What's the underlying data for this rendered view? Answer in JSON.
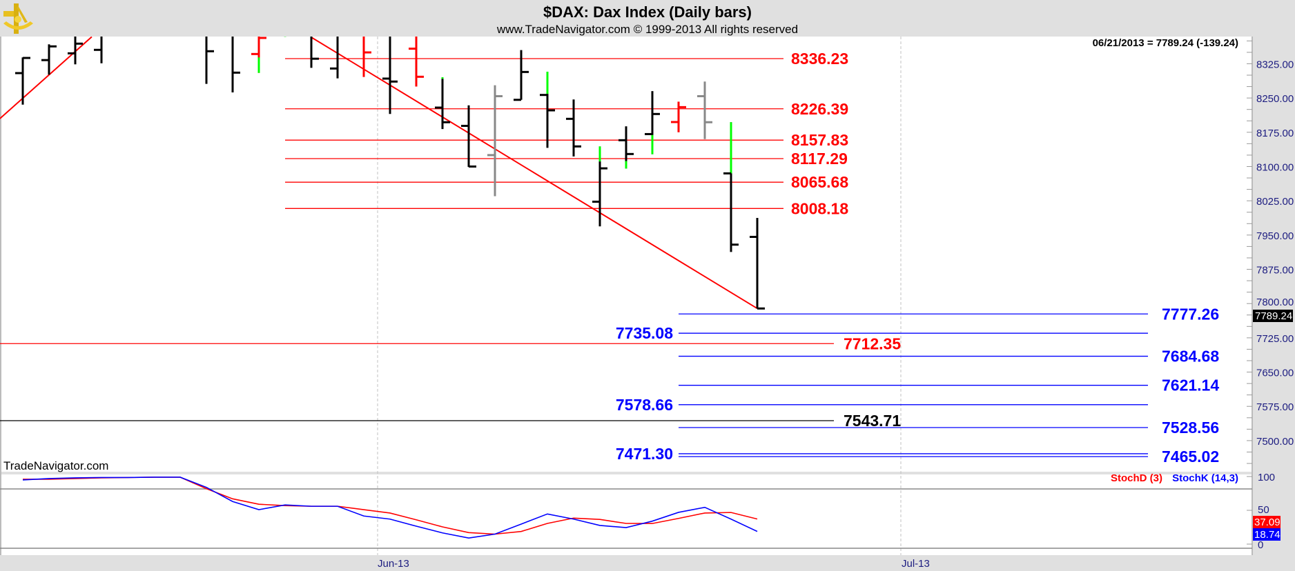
{
  "header": {
    "title": "$DAX:  Dax Index  (Daily bars)",
    "subtitle": "www.TradeNavigator.com © 1999-2013 All rights reserved",
    "last_quote": "06/21/2013 = 7789.24 (-139.24)",
    "logo": "sextant-logo"
  },
  "watermark": "TradeNavigator.com",
  "colors": {
    "up_tip": "#00ff00",
    "red": "#ff0000",
    "blue": "#0000ff",
    "grey": "#888888",
    "bar": "#000000",
    "axis_text": "#1c1c80",
    "background": "#e0e0e0"
  },
  "chart_data": [
    {
      "type": "ohlc",
      "title": "$DAX:  Dax Index  (Daily bars)",
      "x_tick_labels": [
        "Jun-13",
        "Jul-13"
      ],
      "y_tick_labels": [
        "8325.00",
        "8250.00",
        "8175.00",
        "8100.00",
        "8025.00",
        "7950.00",
        "7875.00",
        "7800.00",
        "7725.00",
        "7650.00",
        "7575.00",
        "7500.00"
      ],
      "ylim": [
        7440,
        8385
      ],
      "current_price_label": "7789.24",
      "bars": [
        {
          "o": 8304.5,
          "h": 8338.8,
          "l": 8235.5,
          "c": 8337.7,
          "color": "#000000"
        },
        {
          "o": 8333,
          "h": 8367.5,
          "l": 8301,
          "c": 8363,
          "color": "#000000"
        },
        {
          "o": 8347.8,
          "h": 8395,
          "l": 8323.7,
          "c": 8369,
          "color": "#000000"
        },
        {
          "o": 8355.4,
          "h": 8420,
          "l": 8326,
          "c": 8400,
          "color": "#000000"
        },
        null,
        null,
        null,
        {
          "o": 8400,
          "h": 8430,
          "l": 8281,
          "c": 8352.4,
          "color": "#000000"
        },
        {
          "o": 8410,
          "h": 8430,
          "l": 8262.3,
          "c": 8305.5,
          "color": "#000000"
        },
        {
          "o": 8346.3,
          "h": 8385,
          "l": 8305,
          "c": 8381.5,
          "color": "#ff0000",
          "bottom_color": "#00ff00",
          "bottom_from": 8338.8
        },
        {
          "o": 8420,
          "h": 8440,
          "l": 8384,
          "c": 8430,
          "color": "#00ff00"
        },
        {
          "o": 8400,
          "h": 8420,
          "l": 8316,
          "c": 8336,
          "color": "#000000"
        },
        {
          "o": 8314.6,
          "h": 8410,
          "l": 8293,
          "c": 8395,
          "color": "#000000"
        },
        {
          "o": 8400,
          "h": 8410,
          "l": 8296,
          "c": 8349.8,
          "color": "#ff0000"
        },
        {
          "o": 8292.5,
          "h": 8420,
          "l": 8215,
          "c": 8286,
          "color": "#000000"
        },
        {
          "o": 8358,
          "h": 8420,
          "l": 8275,
          "c": 8296.5,
          "color": "#ff0000"
        },
        {
          "o": 8229,
          "h": 8295.5,
          "l": 8182,
          "c": 8197,
          "color": "#000000",
          "top_color": "#00ff00",
          "top_to": 8292
        },
        {
          "o": 8189,
          "h": 8234,
          "l": 8099,
          "c": 8100,
          "color": "#000000"
        },
        {
          "o": 8125,
          "h": 8278,
          "l": 8035,
          "c": 8254,
          "color": "#888888"
        },
        {
          "o": 8246,
          "h": 8355,
          "l": 8246,
          "c": 8307,
          "color": "#000000"
        },
        {
          "o": 8256.7,
          "h": 8307.6,
          "l": 8141,
          "c": 8223,
          "color": "#000000",
          "top_color": "#00ff00",
          "top_to": 8259
        },
        {
          "o": 8204.4,
          "h": 8246.7,
          "l": 8122,
          "c": 8144,
          "color": "#000000"
        },
        {
          "o": 8023,
          "h": 8144,
          "l": 7969,
          "c": 8096,
          "color": "#000000",
          "top_color": "#00ff00",
          "top_to": 8111
        },
        {
          "o": 8157.6,
          "h": 8188,
          "l": 8095.7,
          "c": 8127.4,
          "color": "#000000",
          "bottom_color": "#00ff00",
          "bottom_from": 8112
        },
        {
          "o": 8171,
          "h": 8265,
          "l": 8127,
          "c": 8215,
          "color": "#000000",
          "bottom_color": "#00ff00",
          "bottom_from": 8169
        },
        {
          "o": 8197.4,
          "h": 8242,
          "l": 8175,
          "c": 8230,
          "color": "#ff0000"
        },
        {
          "o": 8254,
          "h": 8286,
          "l": 8160,
          "c": 8197,
          "color": "#888888"
        },
        {
          "o": 8085,
          "h": 8197,
          "l": 7913,
          "c": 7929,
          "color": "#000000",
          "top_color": "#00ff00",
          "top_to": 8085
        },
        {
          "o": 7946,
          "h": 7987.5,
          "l": 7789.24,
          "c": 7789.24,
          "color": "#000000"
        }
      ],
      "trendlines": [
        {
          "color": "#ff0000",
          "points": [
            [
              -0.87,
              8205
            ],
            [
              2.63,
              8384
            ]
          ]
        },
        {
          "color": "#ff0000",
          "points": [
            [
              10.97,
              8384
            ],
            [
              28,
              7789.24
            ]
          ]
        }
      ],
      "red_levels": [
        "8336.23",
        "8226.39",
        "8157.83",
        "8117.29",
        "8065.68",
        "8008.18"
      ],
      "blue_levels": [
        {
          "value": "7777.26",
          "label_side": "right"
        },
        {
          "value": "7735.08",
          "label_side": "left"
        },
        {
          "value": "7684.68",
          "label_side": "right"
        },
        {
          "value": "7621.14",
          "label_side": "right"
        },
        {
          "value": "7578.66",
          "label_side": "left"
        },
        {
          "value": "7528.56",
          "label_side": "right"
        },
        {
          "value": "7471.30",
          "label_side": "left"
        },
        {
          "value": "7465.02",
          "label_side": "right"
        }
      ],
      "long_levels": [
        {
          "value": "7712.35",
          "color": "#ff0000"
        },
        {
          "value": "7543.71",
          "color": "#000000"
        }
      ]
    },
    {
      "type": "line",
      "ylim": [
        0,
        100
      ],
      "y_tick_labels": [
        "100",
        "50",
        "0"
      ],
      "series": [
        {
          "name": "StochD (3)",
          "color": "#ff0000",
          "last": "37.09",
          "values": [
            96,
            96,
            97,
            98,
            98.5,
            99,
            99,
            82,
            67,
            59,
            57,
            56,
            56,
            51,
            46,
            36,
            25.5,
            17,
            14.8,
            18.7,
            30.6,
            38.5,
            36.5,
            30.6,
            30.5,
            38,
            46,
            46.8,
            37.09
          ]
        },
        {
          "name": "StochK (14,3)",
          "color": "#0000ff",
          "last": "18.74",
          "values": [
            95,
            97,
            98,
            98.5,
            98.5,
            99,
            99,
            84,
            63,
            51,
            58,
            56,
            56,
            41.6,
            37,
            26.5,
            16.6,
            9,
            14.8,
            29.6,
            44.6,
            37,
            27.6,
            24.4,
            34,
            47,
            54.4,
            37,
            18.74
          ]
        }
      ]
    }
  ]
}
